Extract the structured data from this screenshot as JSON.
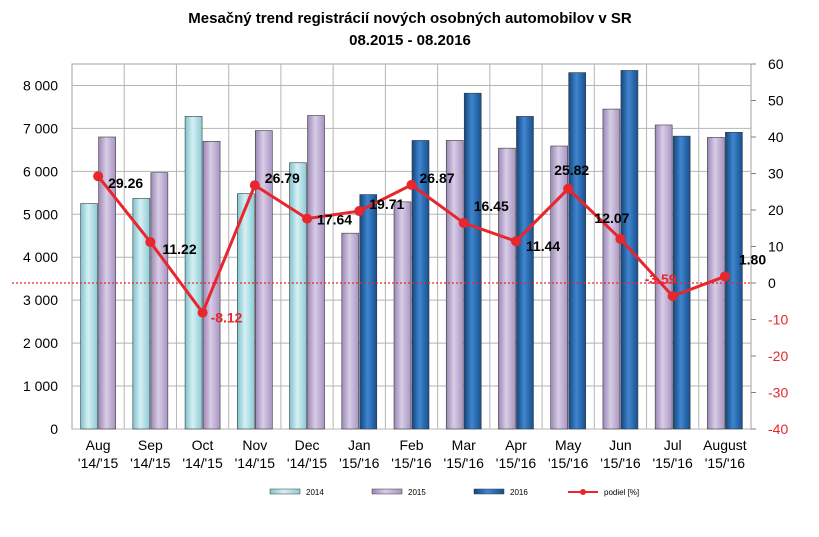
{
  "chart_data": {
    "type": "bar",
    "title": "Mesačný trend registrácií nových osobných automobilov v SR",
    "subtitle": "08.2015 - 08.2016",
    "categories": [
      [
        "Aug",
        "'14/'15"
      ],
      [
        "Sep",
        "'14/'15"
      ],
      [
        "Oct",
        "'14/'15"
      ],
      [
        "Nov",
        "'14/'15"
      ],
      [
        "Dec",
        "'14/'15"
      ],
      [
        "Jan",
        "'15/'16"
      ],
      [
        "Feb",
        "'15/'16"
      ],
      [
        "Mar",
        "'15/'16"
      ],
      [
        "Apr",
        "'15/'16"
      ],
      [
        "May",
        "'15/'16"
      ],
      [
        "Jun",
        "'15/'16"
      ],
      [
        "Jul",
        "'15/'16"
      ],
      [
        "August",
        "'15/'16"
      ]
    ],
    "series": [
      {
        "name": "2014",
        "color": "#9cd3dc",
        "values": [
          5250,
          5370,
          7280,
          5480,
          6200,
          null,
          null,
          null,
          null,
          null,
          null,
          null,
          null
        ]
      },
      {
        "name": "2015",
        "color": "#b3a2c7",
        "values": [
          6800,
          5970,
          6700,
          6950,
          7300,
          4560,
          5290,
          6720,
          6540,
          6590,
          7450,
          7080,
          6790
        ]
      },
      {
        "name": "2016",
        "color": "#1f5fa8",
        "values": [
          null,
          null,
          null,
          null,
          null,
          5460,
          6720,
          7820,
          7280,
          8300,
          8350,
          6820,
          6910
        ]
      }
    ],
    "line_series": {
      "name": "podiel [%]",
      "color": "#e8262d",
      "values": [
        29.26,
        11.22,
        -8.12,
        26.79,
        17.64,
        19.71,
        26.87,
        16.45,
        11.44,
        25.82,
        12.07,
        -3.59,
        1.8
      ],
      "labels": [
        "29.26",
        "11.22",
        "-8.12",
        "26.79",
        "17.64",
        "19.71",
        "26.87",
        "16.45",
        "11.44",
        "25.82",
        "12.07",
        "-3.59",
        "1.80"
      ]
    },
    "y_left": {
      "min": 0,
      "max": 8500,
      "ticks": [
        0,
        1000,
        2000,
        3000,
        4000,
        5000,
        6000,
        7000,
        8000
      ],
      "tick_labels": [
        "0",
        "1 000",
        "2 000",
        "3 000",
        "4 000",
        "5 000",
        "6 000",
        "7 000",
        "8 000"
      ]
    },
    "y_right": {
      "min": -40,
      "max": 60,
      "ticks": [
        -40,
        -30,
        -20,
        -10,
        0,
        10,
        20,
        30,
        40,
        50,
        60
      ],
      "tick_labels": [
        "-40",
        "-30",
        "-20",
        "-10",
        "0",
        "10",
        "20",
        "30",
        "40",
        "50",
        "60"
      ],
      "negative_color": "#e8262d"
    },
    "grid": true,
    "zero_line": {
      "style": "dotted",
      "color": "#e8262d"
    },
    "legend_position": "bottom"
  }
}
